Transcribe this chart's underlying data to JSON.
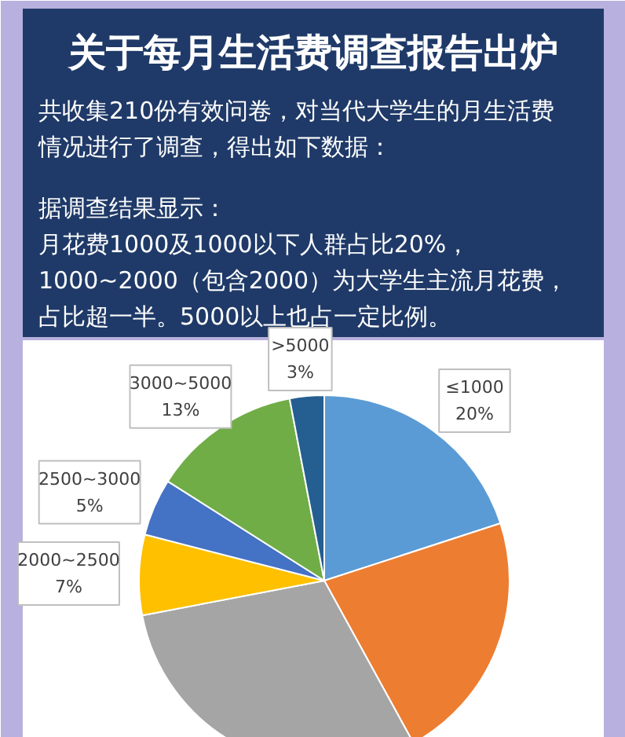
{
  "chart_data": {
    "type": "pie",
    "title": "关于每月生活费调查报告出炉",
    "subtitle": "共收集210份有效问卷，对当代大学生的月生活费情况进行了调查，得出如下数据：",
    "annotations": [
      "据调查结果显示：",
      "月花费1000及1000以下人群占比20%，",
      "1000~2000（包含2000）为大学生主流月花费，占比超一半。5000以上也占一定比例。"
    ],
    "categories": [
      "≤1000",
      null,
      null,
      "2000~2500",
      "2500~3000",
      "3000~5000",
      ">5000"
    ],
    "values": [
      20,
      22,
      30,
      7,
      5,
      13,
      3
    ],
    "colors": [
      "#5b9bd5",
      "#ed7d31",
      "#a5a5a5",
      "#ffc000",
      "#4472c4",
      "#70ad47",
      "#255e91"
    ],
    "value_labels": [
      "20%",
      null,
      null,
      "7%",
      "5%",
      "13%",
      "3%"
    ]
  }
}
